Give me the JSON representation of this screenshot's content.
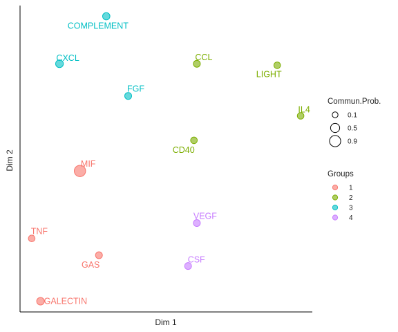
{
  "chart_data": {
    "type": "scatter",
    "xlabel": "Dim 1",
    "ylabel": "Dim 2",
    "xlim": [
      0,
      10
    ],
    "ylim": [
      0,
      10
    ],
    "grid": false,
    "legend_placement": "right",
    "colors": {
      "1": "#F8766D",
      "2": "#7CAE00",
      "3": "#00BFC4",
      "4": "#C77CFF"
    },
    "points": [
      {
        "label": "COMPLEMENT",
        "x": 2.95,
        "y": 9.65,
        "group": "3",
        "prob": 0.25
      },
      {
        "label": "CXCL",
        "x": 1.35,
        "y": 8.1,
        "group": "3",
        "prob": 0.3
      },
      {
        "label": "FGF",
        "x": 3.7,
        "y": 7.05,
        "group": "3",
        "prob": 0.2
      },
      {
        "label": "CCL",
        "x": 6.05,
        "y": 8.1,
        "group": "2",
        "prob": 0.2
      },
      {
        "label": "LIGHT",
        "x": 8.8,
        "y": 8.05,
        "group": "2",
        "prob": 0.18
      },
      {
        "label": "IL4",
        "x": 9.6,
        "y": 6.4,
        "group": "2",
        "prob": 0.18
      },
      {
        "label": "CD40",
        "x": 5.95,
        "y": 5.6,
        "group": "2",
        "prob": 0.18
      },
      {
        "label": "MIF",
        "x": 2.05,
        "y": 4.6,
        "group": "1",
        "prob": 0.95
      },
      {
        "label": "TNF",
        "x": 0.4,
        "y": 2.4,
        "group": "1",
        "prob": 0.18
      },
      {
        "label": "GAS",
        "x": 2.7,
        "y": 1.85,
        "group": "1",
        "prob": 0.2
      },
      {
        "label": "GALECTIN",
        "x": 0.7,
        "y": 0.35,
        "group": "1",
        "prob": 0.28
      },
      {
        "label": "VEGF",
        "x": 6.05,
        "y": 2.9,
        "group": "4",
        "prob": 0.2
      },
      {
        "label": "CSF",
        "x": 5.75,
        "y": 1.5,
        "group": "4",
        "prob": 0.2
      }
    ],
    "legend_size": {
      "title": "Commun.Prob.",
      "entries": [
        {
          "label": "0.1",
          "value": 0.1
        },
        {
          "label": "0.5",
          "value": 0.5
        },
        {
          "label": "0.9",
          "value": 0.9
        }
      ]
    },
    "legend_groups": {
      "title": "Groups",
      "entries": [
        {
          "label": "1",
          "group": "1"
        },
        {
          "label": "2",
          "group": "2"
        },
        {
          "label": "3",
          "group": "3"
        },
        {
          "label": "4",
          "group": "4"
        }
      ]
    }
  }
}
